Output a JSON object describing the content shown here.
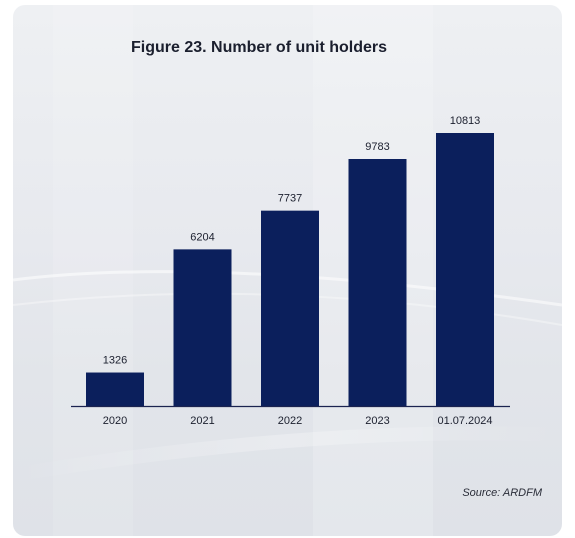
{
  "title": "Figure 23. Number of unit holders",
  "source": "Source: ARDFM",
  "colors": {
    "bar": "#0b1f5c",
    "axis": "#1b2350",
    "text": "#1b1f2e"
  },
  "chart_data": {
    "type": "bar",
    "title": "Figure 23. Number of unit holders",
    "categories": [
      "2020",
      "2021",
      "2022",
      "2023",
      "01.07.2024"
    ],
    "values": [
      1326,
      6204,
      7737,
      9783,
      10813
    ],
    "xlabel": "",
    "ylabel": "",
    "ylim": [
      0,
      10813
    ],
    "grid": false,
    "legend": "none",
    "data_labels": true
  }
}
